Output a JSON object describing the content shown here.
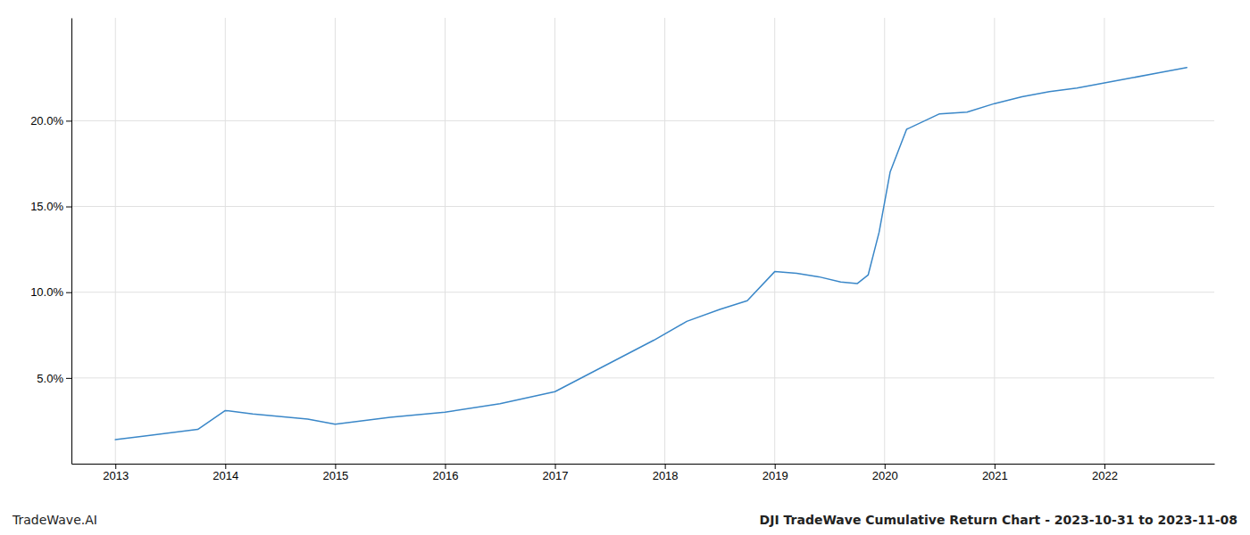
{
  "chart_data": {
    "type": "line",
    "title": "DJI TradeWave Cumulative Return Chart - 2023-10-31 to 2023-11-08",
    "annotations": [
      "TradeWave.AI"
    ],
    "x": [
      2013.0,
      2013.25,
      2013.75,
      2014.0,
      2014.25,
      2014.75,
      2015.0,
      2015.5,
      2016.0,
      2016.5,
      2017.0,
      2017.3,
      2017.6,
      2017.9,
      2018.2,
      2018.5,
      2018.75,
      2019.0,
      2019.2,
      2019.4,
      2019.6,
      2019.75,
      2019.85,
      2019.95,
      2020.05,
      2020.2,
      2020.5,
      2020.75,
      2021.0,
      2021.25,
      2021.5,
      2021.75,
      2022.0,
      2022.25,
      2022.5,
      2022.75
    ],
    "values": [
      1.4,
      1.6,
      2.0,
      3.1,
      2.9,
      2.6,
      2.3,
      2.7,
      3.0,
      3.5,
      4.2,
      5.2,
      6.2,
      7.2,
      8.3,
      9.0,
      9.5,
      11.2,
      11.1,
      10.9,
      10.6,
      10.5,
      11.0,
      13.5,
      17.0,
      19.5,
      20.4,
      20.5,
      21.0,
      21.4,
      21.7,
      21.9,
      22.2,
      22.5,
      22.8,
      23.1
    ],
    "color": "#3a87c8",
    "xlim": [
      2012.6,
      2023.0
    ],
    "xticks": [
      2013,
      2014,
      2015,
      2016,
      2017,
      2018,
      2019,
      2020,
      2021,
      2022
    ],
    "ylim": [
      0.0,
      26.0
    ],
    "yticks": [
      {
        "value": 5.0,
        "label": "5.0%"
      },
      {
        "value": 10.0,
        "label": "10.0%"
      },
      {
        "value": 15.0,
        "label": "15.0%"
      },
      {
        "value": 20.0,
        "label": "20.0%"
      }
    ],
    "grid": true
  }
}
